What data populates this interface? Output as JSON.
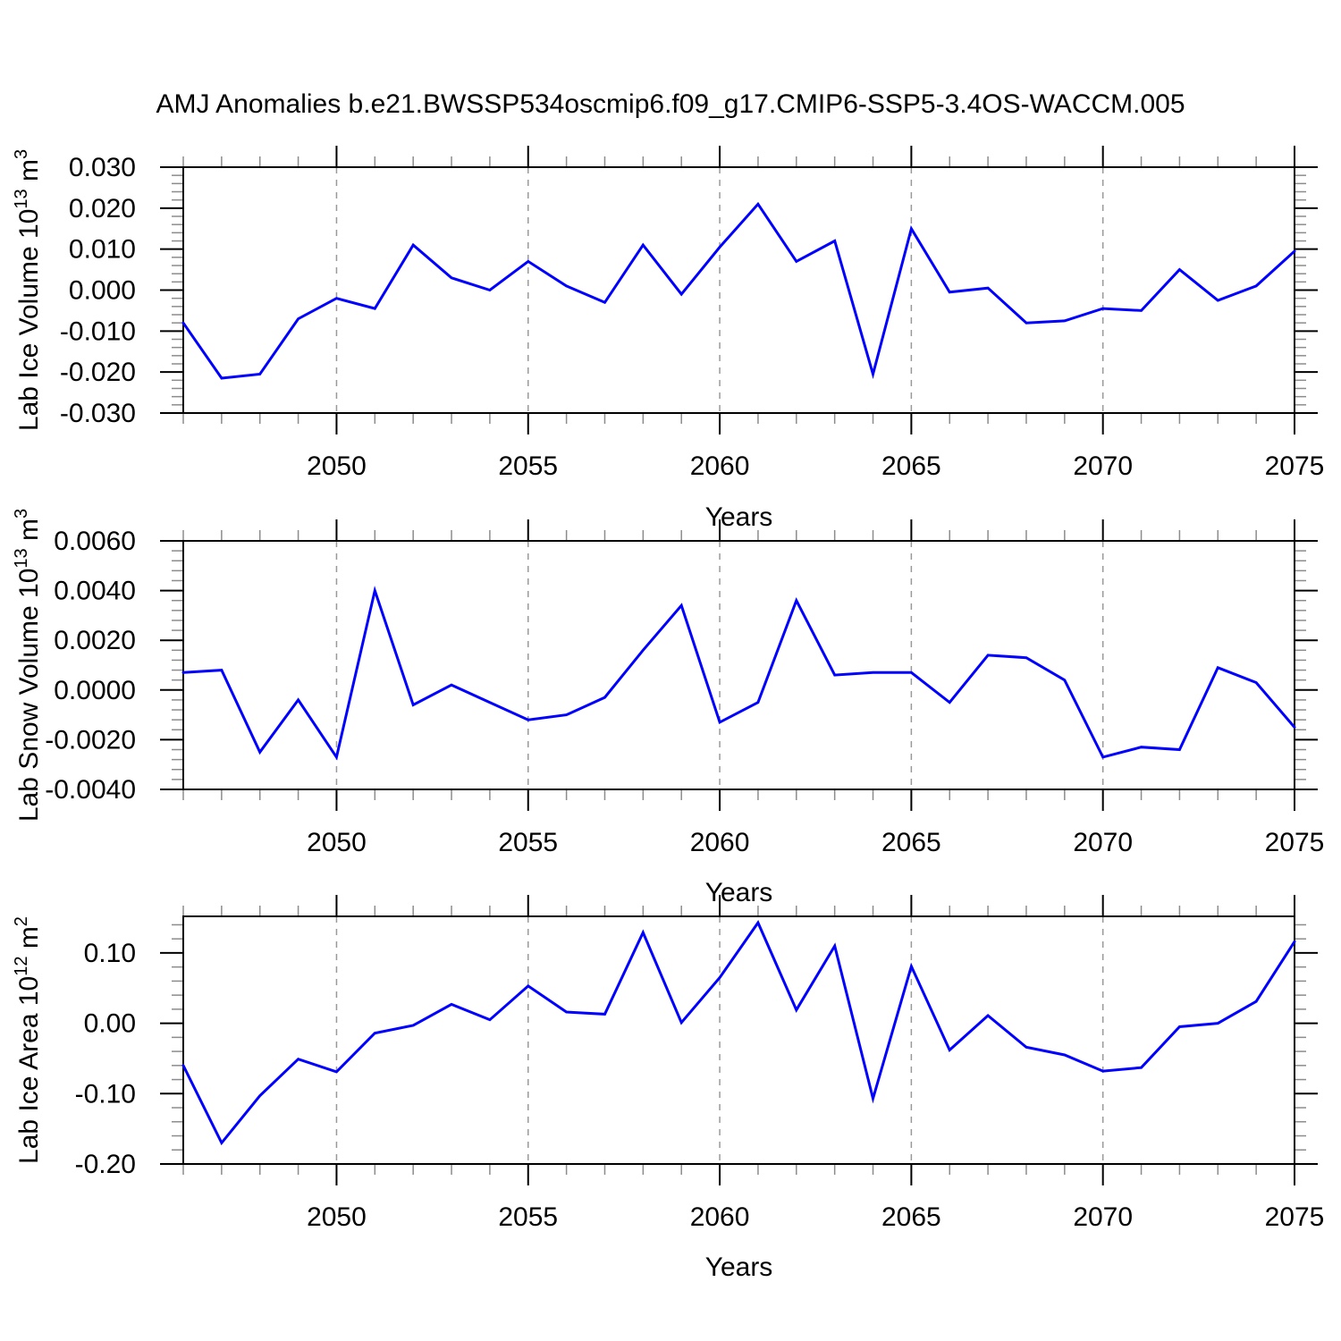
{
  "page": {
    "title": "AMJ Anomalies b.e21.BWSSP534oscmip6.f09_g17.CMIP6-SSP5-3.4OS-WACCM.005",
    "background": "#ffffff"
  },
  "colors": {
    "line": "#0000ff",
    "axis": "#000000",
    "major_tick": "#000000",
    "minor_tick": "#8c8c8c",
    "gridline": "#999999",
    "text": "#000000"
  },
  "chart_data": [
    {
      "type": "line",
      "name": "lab-ice-volume",
      "ylabel_plain": "Lab Ice Volume 10^13 m^3",
      "ylabel_parts": [
        {
          "t": "Lab Ice Volume 10",
          "sup": false
        },
        {
          "t": "13",
          "sup": true
        },
        {
          "t": " m",
          "sup": false
        },
        {
          "t": "3",
          "sup": true
        }
      ],
      "xlabel": "Years",
      "xlim": [
        2046,
        2075
      ],
      "xticks": [
        2050,
        2055,
        2060,
        2065,
        2070,
        2075
      ],
      "xtick_labels": [
        "2050",
        "2055",
        "2060",
        "2065",
        "2070",
        "2075"
      ],
      "xminor_step": 1,
      "ylim": [
        -0.03,
        0.03
      ],
      "yticks": [
        0.03,
        0.02,
        0.01,
        0.0,
        -0.01,
        -0.02,
        -0.03
      ],
      "ytick_labels": [
        "0.030",
        "0.020",
        "0.010",
        "0.000",
        "-0.010",
        "-0.020",
        "-0.030"
      ],
      "yminor_step": 0.002,
      "grid": "vertical-dashed",
      "x": [
        2046,
        2047,
        2048,
        2049,
        2050,
        2051,
        2052,
        2053,
        2054,
        2055,
        2056,
        2057,
        2058,
        2059,
        2060,
        2061,
        2062,
        2063,
        2064,
        2065,
        2066,
        2067,
        2068,
        2069,
        2070,
        2071,
        2072,
        2073,
        2074,
        2075
      ],
      "values": [
        -0.008,
        -0.0215,
        -0.0205,
        -0.007,
        -0.002,
        -0.0045,
        0.011,
        0.003,
        0.0,
        0.007,
        0.001,
        -0.003,
        0.011,
        -0.001,
        0.0105,
        0.021,
        0.007,
        0.012,
        -0.0205,
        0.015,
        -0.0005,
        0.0005,
        -0.008,
        -0.0075,
        -0.0045,
        -0.005,
        0.005,
        -0.0025,
        0.001,
        0.0095
      ]
    },
    {
      "type": "line",
      "name": "lab-snow-volume",
      "ylabel_plain": "Lab Snow Volume 10^13 m^3",
      "ylabel_parts": [
        {
          "t": "Lab Snow Volume 10",
          "sup": false
        },
        {
          "t": "13",
          "sup": true
        },
        {
          "t": " m",
          "sup": false
        },
        {
          "t": "3",
          "sup": true
        }
      ],
      "xlabel": "Years",
      "xlim": [
        2046,
        2075
      ],
      "xticks": [
        2050,
        2055,
        2060,
        2065,
        2070,
        2075
      ],
      "xtick_labels": [
        "2050",
        "2055",
        "2060",
        "2065",
        "2070",
        "2075"
      ],
      "xminor_step": 1,
      "ylim": [
        -0.004,
        0.006
      ],
      "yticks": [
        0.006,
        0.004,
        0.002,
        0.0,
        -0.002,
        -0.004
      ],
      "ytick_labels": [
        "0.0060",
        "0.0040",
        "0.0020",
        "0.0000",
        "-0.0020",
        "-0.0040"
      ],
      "yminor_step": 0.0004,
      "grid": "vertical-dashed",
      "x": [
        2046,
        2047,
        2048,
        2049,
        2050,
        2051,
        2052,
        2053,
        2054,
        2055,
        2056,
        2057,
        2058,
        2059,
        2060,
        2061,
        2062,
        2063,
        2064,
        2065,
        2066,
        2067,
        2068,
        2069,
        2070,
        2071,
        2072,
        2073,
        2074,
        2075
      ],
      "values": [
        0.0007,
        0.0008,
        -0.0025,
        -0.0004,
        -0.0027,
        0.004,
        -0.0006,
        0.0002,
        -0.0005,
        -0.0012,
        -0.001,
        -0.0003,
        0.0016,
        0.0034,
        -0.0013,
        -0.0005,
        0.0036,
        0.0006,
        0.0007,
        0.0007,
        -0.0005,
        0.0014,
        0.0013,
        0.0004,
        -0.0027,
        -0.0023,
        -0.0024,
        0.0009,
        0.0003,
        -0.0015
      ]
    },
    {
      "type": "line",
      "name": "lab-ice-area",
      "ylabel_plain": "Lab Ice Area 10^12 m^2",
      "ylabel_parts": [
        {
          "t": "Lab Ice Area 10",
          "sup": false
        },
        {
          "t": "12",
          "sup": true
        },
        {
          "t": " m",
          "sup": false
        },
        {
          "t": "2",
          "sup": true
        }
      ],
      "xlabel": "Years",
      "xlim": [
        2046,
        2075
      ],
      "xticks": [
        2050,
        2055,
        2060,
        2065,
        2070,
        2075
      ],
      "xtick_labels": [
        "2050",
        "2055",
        "2060",
        "2065",
        "2070",
        "2075"
      ],
      "xminor_step": 1,
      "ylim": [
        -0.2,
        0.152
      ],
      "yticks": [
        0.1,
        0.0,
        -0.1,
        -0.2
      ],
      "ytick_labels": [
        "0.10",
        "0.00",
        "-0.10",
        "-0.20"
      ],
      "yminor_step": 0.02,
      "grid": "vertical-dashed",
      "x": [
        2046,
        2047,
        2048,
        2049,
        2050,
        2051,
        2052,
        2053,
        2054,
        2055,
        2056,
        2057,
        2058,
        2059,
        2060,
        2061,
        2062,
        2063,
        2064,
        2065,
        2066,
        2067,
        2068,
        2069,
        2070,
        2071,
        2072,
        2073,
        2074,
        2075
      ],
      "values": [
        -0.06,
        -0.17,
        -0.103,
        -0.051,
        -0.069,
        -0.014,
        -0.003,
        0.027,
        0.005,
        0.053,
        0.016,
        0.013,
        0.129,
        0.001,
        0.065,
        0.143,
        0.019,
        0.11,
        -0.107,
        0.081,
        -0.038,
        0.011,
        -0.034,
        -0.045,
        -0.068,
        -0.063,
        -0.005,
        0.0,
        0.031,
        0.116
      ]
    }
  ]
}
